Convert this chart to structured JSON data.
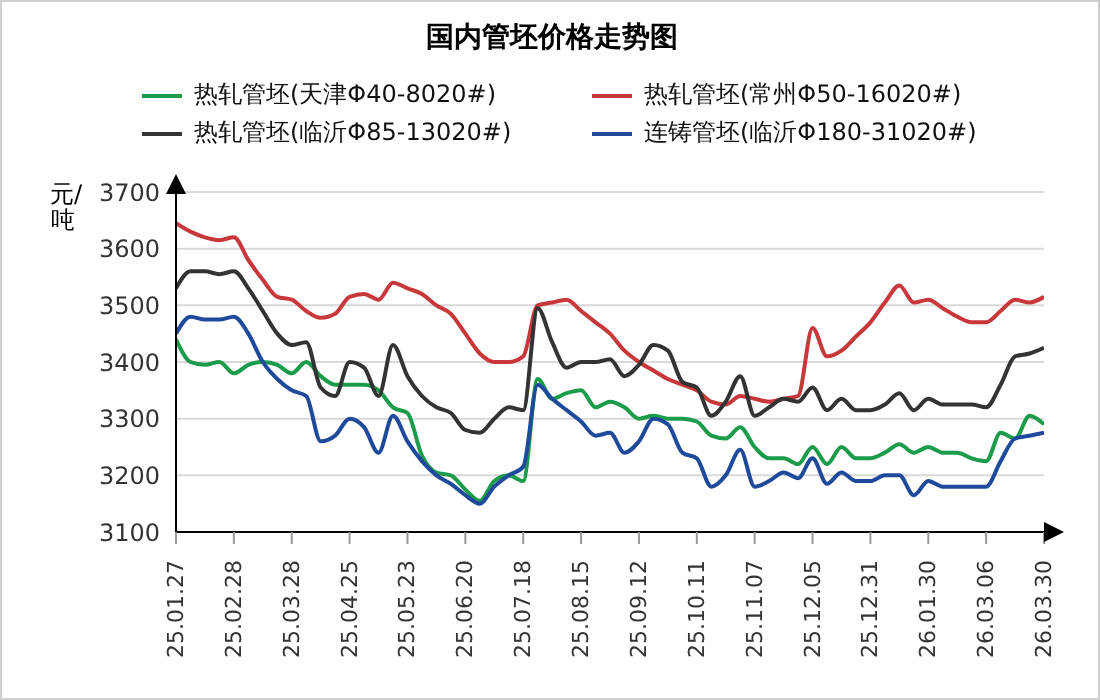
{
  "chart_data": {
    "type": "line",
    "title": "国内管坯价格走势图",
    "ylabel": "元/吨",
    "categories": [
      "25.01.27",
      null,
      null,
      null,
      "25.02.28",
      null,
      null,
      null,
      "25.03.28",
      null,
      null,
      null,
      "25.04.25",
      null,
      null,
      null,
      "25.05.23",
      null,
      null,
      null,
      "25.06.20",
      null,
      null,
      null,
      "25.07.18",
      null,
      null,
      null,
      "25.08.15",
      null,
      null,
      null,
      "25.09.12",
      null,
      null,
      null,
      "25.10.11",
      null,
      null,
      null,
      "25.11.07",
      null,
      null,
      null,
      "25.12.05",
      null,
      null,
      null,
      "25.12.31",
      null,
      null,
      null,
      "26.01.30",
      null,
      null,
      null,
      "26.03.06",
      null,
      null,
      null,
      "26.03.30"
    ],
    "series": [
      {
        "name": "热轧管坯(天津Φ40-8020#)",
        "color": "#1a9c4a",
        "values": [
          3440,
          3400,
          3395,
          3400,
          3380,
          3395,
          3400,
          3395,
          3380,
          3400,
          3375,
          3360,
          3360,
          3360,
          3350,
          3320,
          3310,
          3235,
          3205,
          3200,
          3175,
          3155,
          3190,
          3200,
          3190,
          3370,
          3335,
          3345,
          3350,
          3320,
          3330,
          3320,
          3300,
          3305,
          3300,
          3300,
          3295,
          3270,
          3265,
          3285,
          3250,
          3230,
          3230,
          3220,
          3250,
          3220,
          3250,
          3230,
          3230,
          3240,
          3255,
          3240,
          3250,
          3240,
          3240,
          3230,
          3225,
          3275,
          3265,
          3305,
          3290
        ]
      },
      {
        "name": "热轧管坯(常州Φ50-16020#)",
        "color": "#c8373a",
        "values": [
          3645,
          3630,
          3620,
          3615,
          3620,
          3580,
          3545,
          3515,
          3510,
          3490,
          3478,
          3485,
          3515,
          3520,
          3510,
          3540,
          3530,
          3520,
          3500,
          3485,
          3450,
          3415,
          3400,
          3400,
          3410,
          3500,
          3505,
          3510,
          3490,
          3470,
          3450,
          3420,
          3400,
          3385,
          3370,
          3360,
          3350,
          3330,
          3325,
          3340,
          3335,
          3330,
          3335,
          3340,
          3460,
          3410,
          3420,
          3445,
          3470,
          3505,
          3535,
          3505,
          3510,
          3495,
          3480,
          3470,
          3470,
          3490,
          3510,
          3505,
          3515
        ]
      },
      {
        "name": "热轧管坯(临沂Φ85-13020#)",
        "color": "#333333",
        "values": [
          3530,
          3560,
          3560,
          3555,
          3560,
          3530,
          3490,
          3450,
          3430,
          3435,
          3355,
          3340,
          3400,
          3390,
          3340,
          3430,
          3375,
          3340,
          3320,
          3310,
          3280,
          3275,
          3300,
          3320,
          3315,
          3495,
          3435,
          3390,
          3400,
          3400,
          3405,
          3375,
          3395,
          3430,
          3420,
          3365,
          3355,
          3305,
          3330,
          3375,
          3305,
          3320,
          3335,
          3330,
          3355,
          3315,
          3335,
          3315,
          3315,
          3325,
          3345,
          3315,
          3335,
          3325,
          3325,
          3325,
          3320,
          3360,
          3410,
          3415,
          3425
        ]
      },
      {
        "name": "连铸管坯(临沂Φ180-31020#)",
        "color": "#1f4a9c",
        "values": [
          3450,
          3480,
          3475,
          3475,
          3480,
          3450,
          3400,
          3370,
          3350,
          3340,
          3260,
          3270,
          3300,
          3285,
          3240,
          3305,
          3260,
          3225,
          3200,
          3185,
          3165,
          3150,
          3180,
          3200,
          3215,
          3360,
          3335,
          3315,
          3295,
          3270,
          3275,
          3240,
          3260,
          3300,
          3290,
          3240,
          3230,
          3180,
          3200,
          3245,
          3180,
          3190,
          3205,
          3195,
          3230,
          3185,
          3205,
          3190,
          3190,
          3200,
          3200,
          3165,
          3190,
          3180,
          3180,
          3180,
          3180,
          3225,
          3265,
          3270,
          3275
        ]
      }
    ],
    "ylim": [
      3100,
      3700
    ],
    "yticks": [
      3100,
      3200,
      3300,
      3400,
      3500,
      3600,
      3700
    ],
    "grid": "y",
    "legend": "top",
    "marker": "none",
    "line_style": "solid"
  }
}
